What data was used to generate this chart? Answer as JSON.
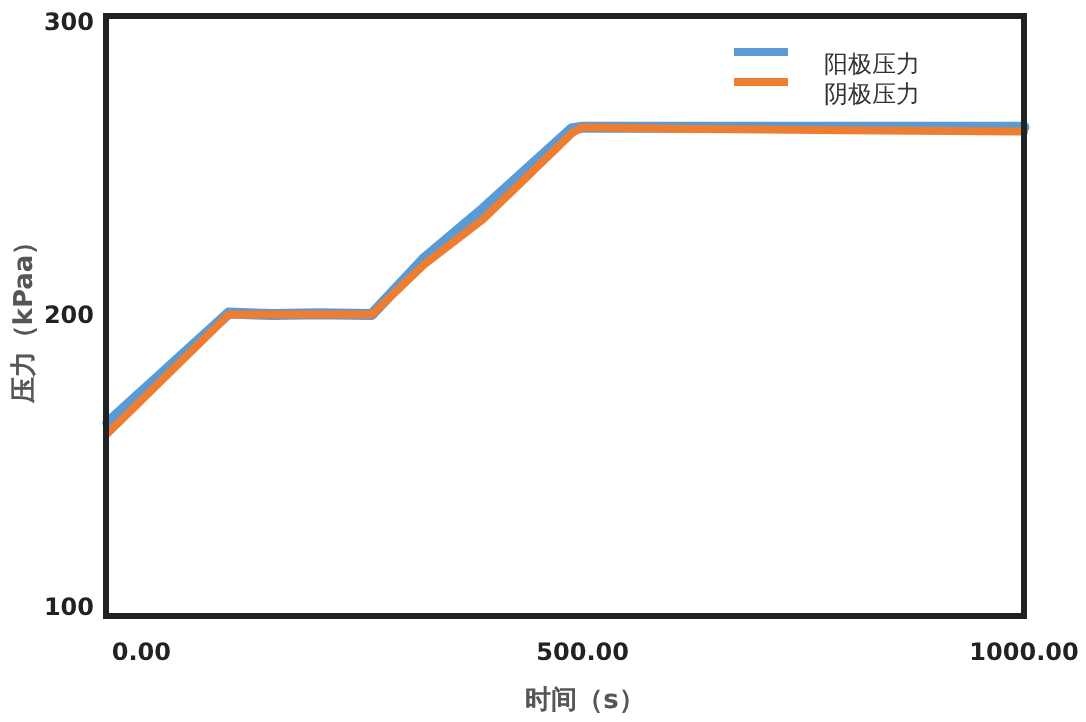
{
  "chart_data": {
    "type": "line",
    "xlabel": "时间（s）",
    "ylabel": "压力（kPaa）",
    "x": [
      -38,
      99,
      150,
      200,
      261,
      320,
      387,
      488,
      500,
      600,
      800,
      1000
    ],
    "series": [
      {
        "name": "阳极压力",
        "color": "#5b9bd5",
        "values": [
          163,
          200.5,
          200,
          200.3,
          200,
          219,
          236,
          263.5,
          264,
          264,
          264,
          264
        ]
      },
      {
        "name": "阴极压力",
        "color": "#ed7d31",
        "values": [
          159.5,
          200,
          200,
          200,
          200,
          217,
          232.5,
          262,
          264,
          263.5,
          263,
          262.5
        ]
      }
    ],
    "xlim": [
      -40,
      1000
    ],
    "ylim": [
      97,
      302
    ],
    "xticks": [
      {
        "value": 0,
        "label": "0.00"
      },
      {
        "value": 500,
        "label": "500.00"
      },
      {
        "value": 1000,
        "label": "1000.00"
      }
    ],
    "yticks": [
      100,
      200,
      300
    ],
    "grid": false,
    "legend": "top right",
    "marker": "none",
    "line_style": "solid"
  }
}
